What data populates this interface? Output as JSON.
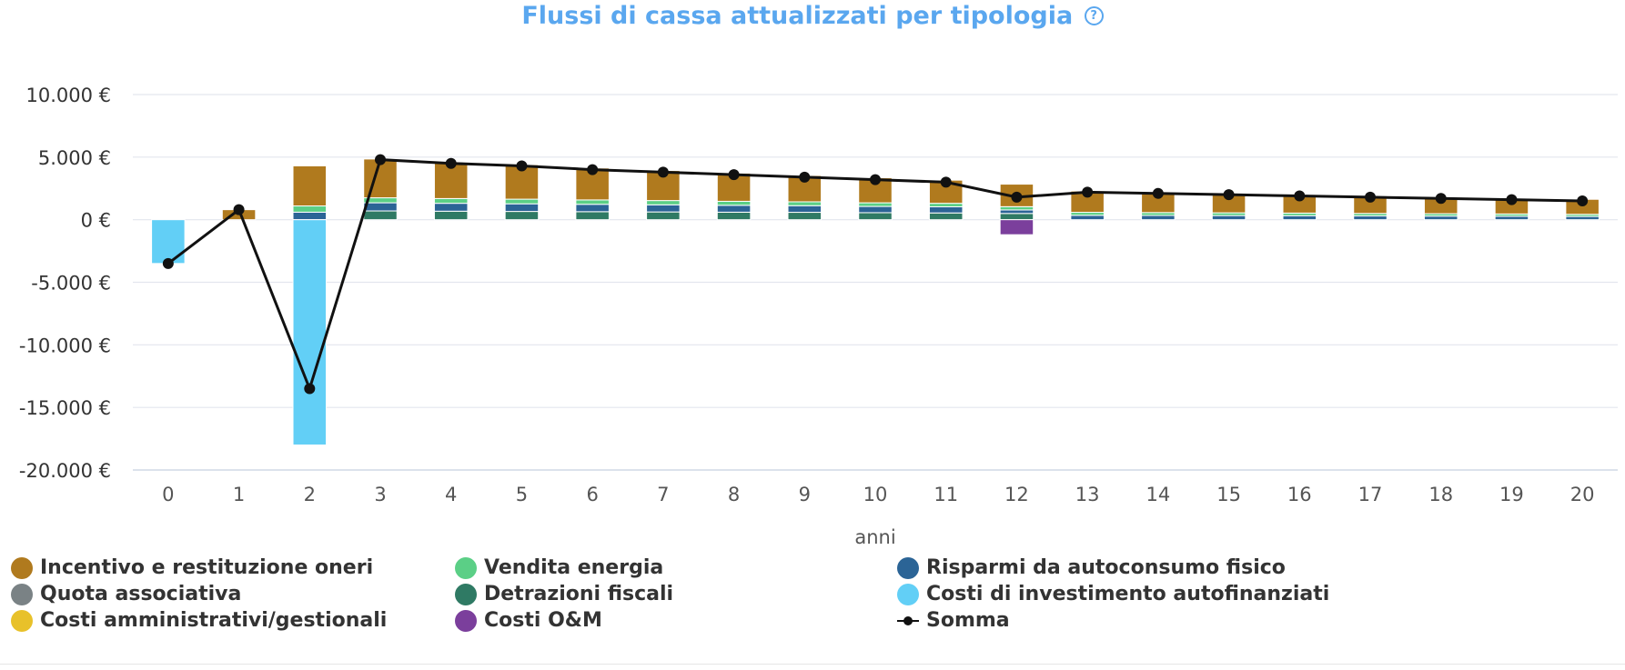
{
  "chart_data": {
    "type": "bar",
    "title": "Flussi di cassa attualizzati per tipologia",
    "xlabel": "anni",
    "ylabel": "",
    "ylim": [
      -20000,
      10000
    ],
    "yticks": [
      10000,
      5000,
      0,
      -5000,
      -10000,
      -15000,
      -20000
    ],
    "ytick_labels": [
      "10.000 €",
      "5.000 €",
      "0 €",
      "-5.000 €",
      "-10.000 €",
      "-15.000 €",
      "-20.000 €"
    ],
    "categories": [
      "0",
      "1",
      "2",
      "3",
      "4",
      "5",
      "6",
      "7",
      "8",
      "9",
      "10",
      "11",
      "12",
      "13",
      "14",
      "15",
      "16",
      "17",
      "18",
      "19",
      "20"
    ],
    "grid": true,
    "legend_position": "bottom",
    "series": [
      {
        "name": "Detrazioni fiscali",
        "type": "bar",
        "color": "#2f7a64",
        "values": [
          0,
          0,
          0,
          700,
          680,
          660,
          640,
          620,
          600,
          590,
          560,
          540,
          500,
          0,
          0,
          0,
          0,
          0,
          0,
          0,
          0
        ]
      },
      {
        "name": "Risparmi da autoconsumo fisico",
        "type": "bar",
        "color": "#2b6496",
        "values": [
          0,
          0,
          600,
          650,
          630,
          610,
          590,
          570,
          550,
          530,
          500,
          490,
          280,
          350,
          340,
          330,
          320,
          300,
          290,
          280,
          260
        ]
      },
      {
        "name": "Quota associativa",
        "type": "bar",
        "color": "#7a8285",
        "values": [
          0,
          0,
          0,
          0,
          0,
          0,
          0,
          0,
          0,
          0,
          0,
          0,
          0,
          0,
          0,
          0,
          0,
          0,
          0,
          0,
          0
        ]
      },
      {
        "name": "Vendita energia",
        "type": "bar",
        "color": "#5bcf86",
        "values": [
          0,
          0,
          500,
          400,
          380,
          370,
          350,
          340,
          320,
          310,
          290,
          280,
          260,
          240,
          230,
          220,
          210,
          200,
          190,
          180,
          170
        ]
      },
      {
        "name": "Costi amministrativi/gestionali",
        "type": "bar",
        "color": "#e8c12a",
        "values": [
          0,
          0,
          0,
          0,
          0,
          0,
          0,
          0,
          0,
          0,
          0,
          0,
          0,
          0,
          0,
          0,
          0,
          0,
          0,
          0,
          0
        ]
      },
      {
        "name": "Incentivo e restituzione oneri",
        "type": "bar",
        "color": "#b07a1e",
        "values": [
          0,
          800,
          3200,
          3100,
          2900,
          2750,
          2550,
          2400,
          2250,
          2100,
          2000,
          1850,
          1800,
          1700,
          1600,
          1550,
          1450,
          1400,
          1300,
          1250,
          1200
        ]
      },
      {
        "name": "Costi di investimento autofinanziati",
        "type": "bar",
        "color": "#62cff6",
        "values": [
          -3500,
          0,
          -18000,
          0,
          0,
          0,
          0,
          0,
          0,
          0,
          0,
          0,
          0,
          0,
          0,
          0,
          0,
          0,
          0,
          0,
          0
        ]
      },
      {
        "name": "Costi O&M",
        "type": "bar",
        "color": "#7b3f9c",
        "values": [
          0,
          0,
          0,
          0,
          0,
          0,
          0,
          0,
          0,
          0,
          0,
          0,
          -1200,
          0,
          0,
          0,
          0,
          0,
          0,
          0,
          0
        ]
      },
      {
        "name": "Somma",
        "type": "line",
        "color": "#111111",
        "values": [
          -3500,
          800,
          -13500,
          4800,
          4500,
          4300,
          4000,
          3800,
          3600,
          3400,
          3200,
          3000,
          1800,
          2200,
          2100,
          2000,
          1900,
          1800,
          1700,
          1600,
          1500
        ]
      }
    ]
  },
  "legend": [
    {
      "label": "Incentivo e restituzione oneri",
      "color": "#b07a1e",
      "kind": "dot"
    },
    {
      "label": "Vendita energia",
      "color": "#5bcf86",
      "kind": "dot"
    },
    {
      "label": "Risparmi da autoconsumo fisico",
      "color": "#2b6496",
      "kind": "dot"
    },
    {
      "label": "Quota associativa",
      "color": "#7a8285",
      "kind": "dot"
    },
    {
      "label": "Detrazioni fiscali",
      "color": "#2f7a64",
      "kind": "dot"
    },
    {
      "label": "Costi di investimento autofinanziati",
      "color": "#62cff6",
      "kind": "dot"
    },
    {
      "label": "Costi amministrativi/gestionali",
      "color": "#e8c12a",
      "kind": "dot"
    },
    {
      "label": "Costi O&M",
      "color": "#7b3f9c",
      "kind": "dot"
    },
    {
      "label": "Somma",
      "color": "#111111",
      "kind": "line"
    }
  ],
  "help_icon": "question-circle-icon"
}
